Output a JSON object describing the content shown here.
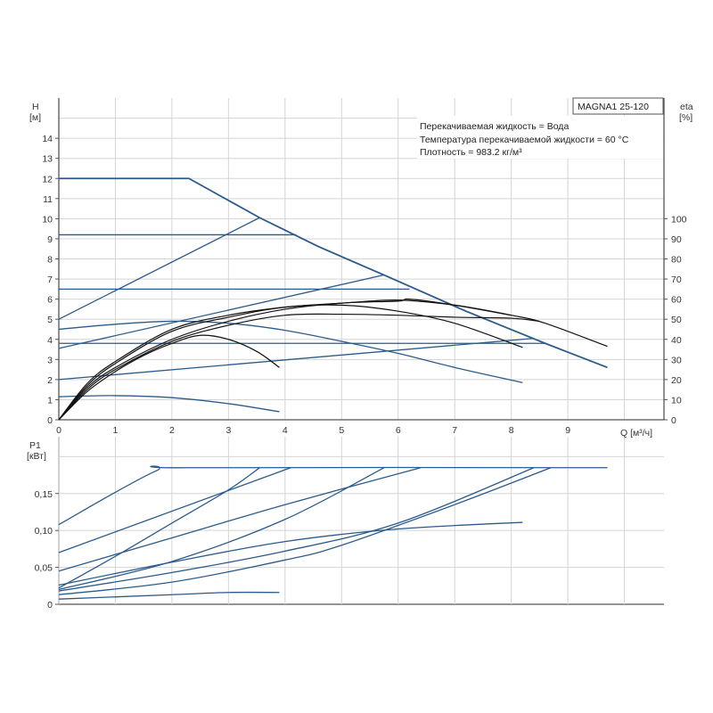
{
  "chart_data": [
    {
      "type": "line",
      "title": "MAGNA1 25-120",
      "annotations": [
        "Перекачиваемая жидкость = Вода",
        "Температура перекачиваемой жидкости = 60 °C",
        "Плотность = 983.2 кг/м³"
      ],
      "xlabel": "Q [м³/ч]",
      "ylabel": [
        "H",
        "[м]"
      ],
      "y2label": [
        "eta",
        "[%]"
      ],
      "xlim": [
        0,
        10.7
      ],
      "ylim": [
        0,
        16
      ],
      "y2lim": [
        0,
        160
      ],
      "xticks": [
        "0",
        "1",
        "2",
        "3",
        "4",
        "5",
        "6",
        "7",
        "8",
        "9"
      ],
      "yticks": [
        "0",
        "1",
        "2",
        "3",
        "4",
        "5",
        "6",
        "7",
        "8",
        "9",
        "10",
        "11",
        "12",
        "13",
        "14"
      ],
      "y2ticks": [
        "0",
        "10",
        "20",
        "30",
        "40",
        "50",
        "60",
        "70",
        "80",
        "90",
        "100"
      ],
      "grid": true,
      "colors": {
        "head": "#2b5b8c",
        "eta": "#111111",
        "grid": "#d4d4d4",
        "axis": "#555555"
      },
      "head_curves": [
        {
          "x": [
            0,
            2.3,
            3.55,
            4.6,
            5.75,
            7.2,
            8.6,
            9.7
          ],
          "y": [
            12,
            12,
            10.05,
            8.6,
            7.2,
            5.4,
            3.8,
            2.6
          ]
        },
        {
          "x": [
            0,
            3.55
          ],
          "y": [
            5,
            10.05
          ]
        },
        {
          "x": [
            0,
            5.75
          ],
          "y": [
            3.55,
            7.2
          ]
        },
        {
          "x": [
            0,
            8.4
          ],
          "y": [
            2,
            4.05
          ]
        },
        {
          "x": [
            0,
            4.2
          ],
          "y": [
            9.2,
            9.2
          ]
        },
        {
          "x": [
            0,
            6.2
          ],
          "y": [
            6.5,
            6.5
          ]
        },
        {
          "x": [
            0,
            8.6
          ],
          "y": [
            3.8,
            3.8
          ]
        },
        {
          "x": [
            0,
            1,
            2,
            3,
            4,
            5,
            6,
            7,
            8.2
          ],
          "y": [
            4.5,
            4.75,
            4.9,
            4.8,
            4.45,
            3.9,
            3.3,
            2.6,
            1.85
          ]
        },
        {
          "x": [
            0,
            1,
            2,
            3,
            3.9
          ],
          "y": [
            1.15,
            1.2,
            1.1,
            0.8,
            0.4
          ]
        }
      ],
      "eta_curves": [
        {
          "x": [
            0,
            0.5,
            1,
            1.5,
            2,
            2.5,
            3,
            3.5,
            3.9
          ],
          "y": [
            0,
            14,
            24,
            32,
            38,
            42,
            40,
            34,
            26
          ]
        },
        {
          "x": [
            0,
            0.5,
            1,
            2,
            3,
            4,
            5,
            6,
            7,
            8.2
          ],
          "y": [
            0,
            17,
            28,
            44,
            51,
            56,
            57,
            54,
            48,
            36
          ]
        },
        {
          "x": [
            0,
            0.5,
            1,
            2,
            3,
            4,
            5,
            6,
            7,
            8,
            8.6,
            9.7
          ],
          "y": [
            0,
            18,
            29,
            45,
            52,
            56,
            58,
            59.5,
            57,
            52,
            48,
            36.5
          ]
        },
        {
          "x": [
            0,
            0.5,
            1,
            2,
            3,
            4,
            5,
            6,
            7,
            8,
            8.5
          ],
          "y": [
            0,
            15,
            25,
            39,
            47,
            52,
            52.5,
            52,
            51,
            50.5,
            49
          ]
        },
        {
          "x": [
            0,
            0.5,
            1,
            2,
            3,
            4,
            5,
            6,
            6.2,
            7,
            8
          ],
          "y": [
            0,
            16,
            26,
            40,
            49,
            55,
            58,
            59,
            60,
            57,
            52
          ]
        }
      ]
    },
    {
      "type": "line",
      "ylabel": [
        "P1",
        "[кВт]"
      ],
      "xlim": [
        0,
        10.7
      ],
      "ylim": [
        0,
        0.227
      ],
      "yticks": [
        {
          "v": 0,
          "label": "0"
        },
        {
          "v": 0.05,
          "label": "0,05"
        },
        {
          "v": 0.1,
          "label": "0,10"
        },
        {
          "v": 0.15,
          "label": "0,15"
        }
      ],
      "grid": true,
      "colors": {
        "power": "#2b5b8c"
      },
      "power_curves": [
        {
          "x": [
            0,
            1.7,
            2.3,
            9.7
          ],
          "y": [
            0.108,
            0.18,
            0.185,
            0.185
          ]
        },
        {
          "x": [
            0,
            4.1
          ],
          "y": [
            0.07,
            0.185
          ]
        },
        {
          "x": [
            0,
            2,
            4,
            6.4
          ],
          "y": [
            0.045,
            0.09,
            0.135,
            0.185
          ]
        },
        {
          "x": [
            0,
            1,
            2,
            3,
            3.55
          ],
          "y": [
            0.022,
            0.065,
            0.11,
            0.155,
            0.185
          ]
        },
        {
          "x": [
            0,
            2,
            4,
            5.75
          ],
          "y": [
            0.02,
            0.058,
            0.115,
            0.185
          ]
        },
        {
          "x": [
            0,
            2,
            4,
            6,
            8.2
          ],
          "y": [
            0.026,
            0.057,
            0.085,
            0.102,
            0.111
          ]
        },
        {
          "x": [
            0,
            2,
            4,
            6,
            8.4
          ],
          "y": [
            0.018,
            0.043,
            0.072,
            0.11,
            0.185
          ]
        },
        {
          "x": [
            0,
            2,
            4,
            5,
            7,
            8.7
          ],
          "y": [
            0.013,
            0.03,
            0.06,
            0.08,
            0.135,
            0.185
          ]
        },
        {
          "x": [
            0,
            2,
            3,
            3.9
          ],
          "y": [
            0.007,
            0.013,
            0.016,
            0.016
          ]
        }
      ]
    }
  ]
}
